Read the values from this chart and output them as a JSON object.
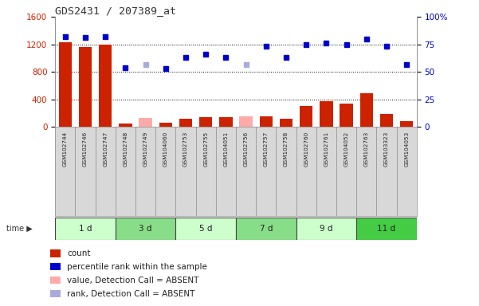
{
  "title": "GDS2431 / 207389_at",
  "samples": [
    "GSM102744",
    "GSM102746",
    "GSM102747",
    "GSM102748",
    "GSM102749",
    "GSM104060",
    "GSM102753",
    "GSM102755",
    "GSM104051",
    "GSM102756",
    "GSM102757",
    "GSM102758",
    "GSM102760",
    "GSM102761",
    "GSM104052",
    "GSM102763",
    "GSM103323",
    "GSM104053"
  ],
  "count_values": [
    1230,
    1160,
    1200,
    50,
    null,
    60,
    120,
    140,
    140,
    null,
    160,
    120,
    300,
    370,
    340,
    490,
    190,
    80
  ],
  "absent_values": [
    null,
    null,
    null,
    null,
    130,
    null,
    null,
    null,
    null,
    160,
    null,
    null,
    null,
    null,
    null,
    null,
    null,
    null
  ],
  "percentile_rank": [
    82,
    81,
    82,
    54,
    null,
    53,
    63,
    66,
    63,
    null,
    73,
    63,
    75,
    76,
    75,
    80,
    73,
    57
  ],
  "absent_rank": [
    null,
    null,
    null,
    null,
    57,
    null,
    null,
    null,
    null,
    57,
    null,
    null,
    null,
    null,
    null,
    null,
    null,
    null
  ],
  "time_groups": [
    {
      "label": "1 d",
      "start": 0,
      "end": 3,
      "color": "#ccffcc"
    },
    {
      "label": "3 d",
      "start": 3,
      "end": 6,
      "color": "#88dd88"
    },
    {
      "label": "5 d",
      "start": 6,
      "end": 9,
      "color": "#ccffcc"
    },
    {
      "label": "7 d",
      "start": 9,
      "end": 12,
      "color": "#88dd88"
    },
    {
      "label": "9 d",
      "start": 12,
      "end": 15,
      "color": "#ccffcc"
    },
    {
      "label": "11 d",
      "start": 15,
      "end": 18,
      "color": "#44cc44"
    }
  ],
  "ylim_left": [
    0,
    1600
  ],
  "ylim_right": [
    0,
    100
  ],
  "yticks_left": [
    0,
    400,
    800,
    1200,
    1600
  ],
  "yticks_right": [
    0,
    25,
    50,
    75,
    100
  ],
  "bar_color": "#cc2200",
  "absent_bar_color": "#ffaaaa",
  "dot_color": "#0000cc",
  "absent_dot_color": "#aaaadd",
  "bg_color": "#d8d8d8",
  "plot_bg": "#ffffff",
  "legend_items": [
    {
      "label": "count",
      "color": "#cc2200"
    },
    {
      "label": "percentile rank within the sample",
      "color": "#0000cc"
    },
    {
      "label": "value, Detection Call = ABSENT",
      "color": "#ffaaaa"
    },
    {
      "label": "rank, Detection Call = ABSENT",
      "color": "#aaaadd"
    }
  ]
}
